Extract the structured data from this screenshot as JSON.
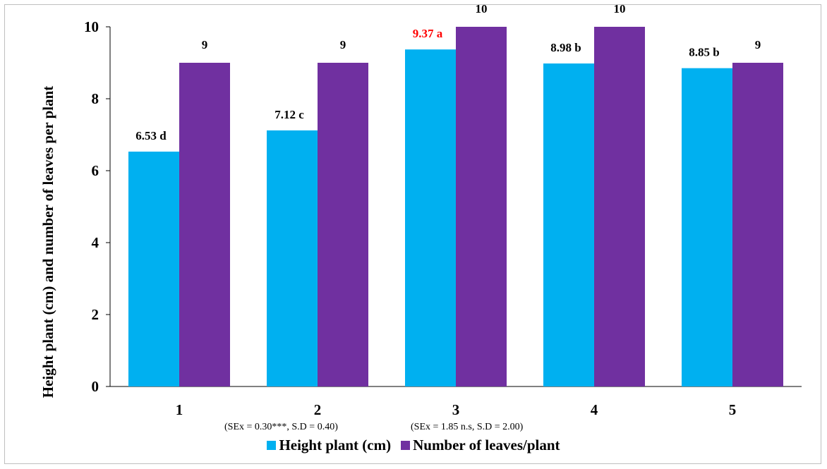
{
  "chart_data": {
    "type": "bar",
    "categories": [
      "1",
      "2",
      "3",
      "4",
      "5"
    ],
    "series": [
      {
        "name": "Height plant (cm)",
        "color": "#00b0f0",
        "values": [
          6.53,
          7.12,
          9.37,
          8.98,
          8.85
        ],
        "labels": [
          "6.53 d",
          "7.12 c",
          "9.37 a",
          "8.98 b",
          "8.85 b"
        ],
        "label_colors": [
          "#000000",
          "#000000",
          "#ff0000",
          "#000000",
          "#000000"
        ]
      },
      {
        "name": "Number of leaves/plant",
        "color": "#7030a0",
        "values": [
          9,
          9,
          10,
          10,
          9
        ],
        "labels": [
          "9",
          "9",
          "10",
          "10",
          "9"
        ],
        "label_colors": [
          "#000000",
          "#000000",
          "#000000",
          "#000000",
          "#000000"
        ]
      }
    ],
    "ylabel": "Height plant (cm) and number of leaves per plant",
    "ylim": [
      0,
      10
    ],
    "yticks": [
      "0",
      "2",
      "4",
      "6",
      "8",
      "10"
    ],
    "grid": false,
    "legend_position": "bottom",
    "annotations": [
      "(SEx = 0.30***, S.D = 0.40)",
      "(SEx = 1.85 n.s, S.D = 2.00)"
    ]
  }
}
